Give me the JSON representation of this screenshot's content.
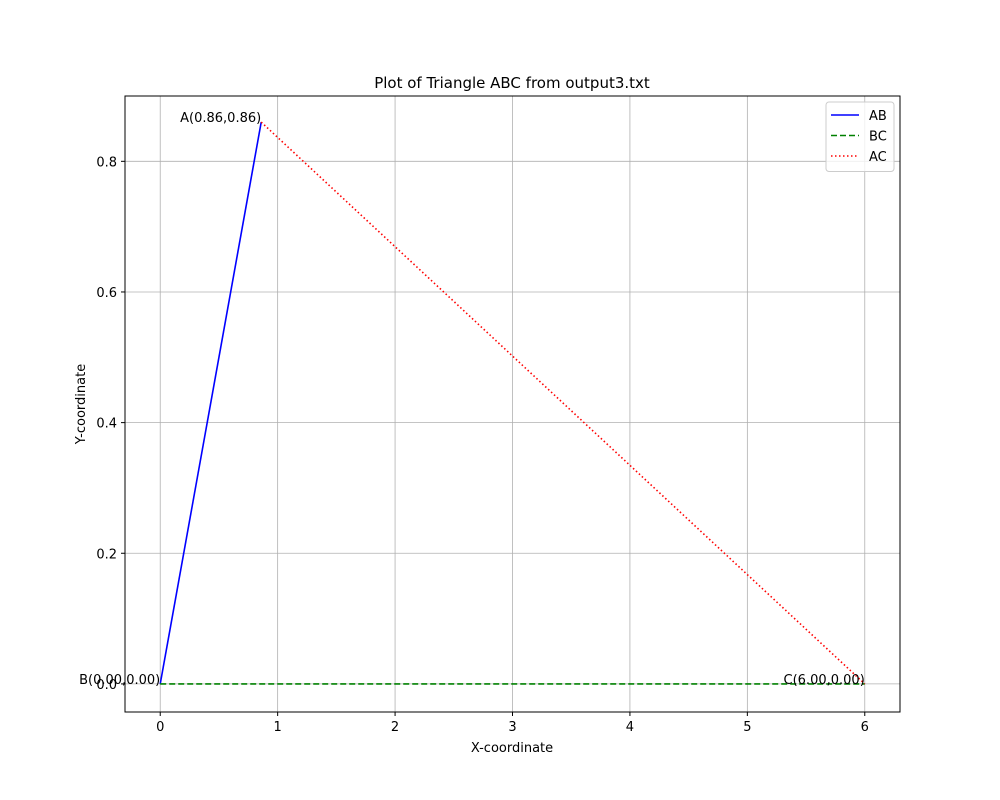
{
  "chart_data": {
    "type": "line",
    "title": "Plot of Triangle ABC from output3.txt",
    "xlabel": "X-coordinate",
    "ylabel": "Y-coordinate",
    "xlim": [
      -0.3,
      6.3
    ],
    "ylim": [
      -0.043,
      0.9
    ],
    "xticks": [
      0,
      1,
      2,
      3,
      4,
      5,
      6
    ],
    "xtick_labels": [
      "0",
      "1",
      "2",
      "3",
      "4",
      "5",
      "6"
    ],
    "yticks": [
      0.0,
      0.2,
      0.4,
      0.6,
      0.8
    ],
    "ytick_labels": [
      "0.0",
      "0.2",
      "0.4",
      "0.6",
      "0.8"
    ],
    "grid": true,
    "legend_position": "top-right",
    "series": [
      {
        "name": "AB",
        "color": "#0000ff",
        "style": "solid",
        "x": [
          0.86,
          0.0
        ],
        "y": [
          0.86,
          0.0
        ]
      },
      {
        "name": "BC",
        "color": "#008000",
        "style": "dashed",
        "x": [
          0.0,
          6.0
        ],
        "y": [
          0.0,
          0.0
        ]
      },
      {
        "name": "AC",
        "color": "#ff0000",
        "style": "dotted",
        "x": [
          0.86,
          6.0
        ],
        "y": [
          0.86,
          0.0
        ]
      }
    ],
    "points": [
      {
        "label": "A(0.86,0.86)",
        "x": 0.86,
        "y": 0.86
      },
      {
        "label": "B(0.00,0.00)",
        "x": 0.0,
        "y": 0.0
      },
      {
        "label": "C(6.00,0.00)",
        "x": 6.0,
        "y": 0.0
      }
    ]
  }
}
